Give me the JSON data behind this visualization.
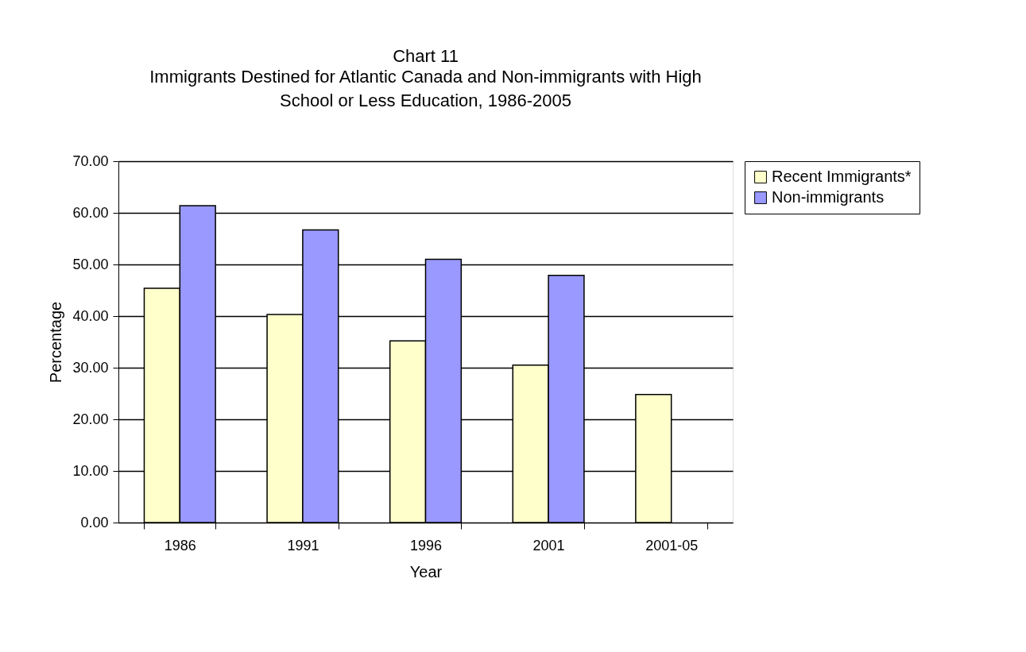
{
  "chart_data": {
    "type": "bar",
    "title": "Chart 11",
    "subtitle": "Immigrants Destined for Atlantic Canada and Non-immigrants with High School or Less Education, 1986-2005",
    "xlabel": "Year",
    "ylabel": "Percentage",
    "categories": [
      "1986",
      "1991",
      "1996",
      "2001",
      "2001-05"
    ],
    "series": [
      {
        "name": "Recent Immigrants*",
        "color": "#ffffcc",
        "values": [
          45.4,
          40.3,
          35.2,
          30.5,
          24.8
        ]
      },
      {
        "name": "Non-immigrants",
        "color": "#9999ff",
        "values": [
          61.4,
          56.7,
          51.0,
          47.9,
          null
        ]
      }
    ],
    "ylim": [
      0,
      70
    ],
    "yticks": [
      {
        "value": 0,
        "label": "0.00"
      },
      {
        "value": 10,
        "label": "10.00"
      },
      {
        "value": 20,
        "label": "20.00"
      },
      {
        "value": 30,
        "label": "30.00"
      },
      {
        "value": 40,
        "label": "40.00"
      },
      {
        "value": 50,
        "label": "50.00"
      },
      {
        "value": 60,
        "label": "60.00"
      },
      {
        "value": 70,
        "label": "70.00"
      }
    ],
    "grid": "y",
    "legend": "right"
  }
}
